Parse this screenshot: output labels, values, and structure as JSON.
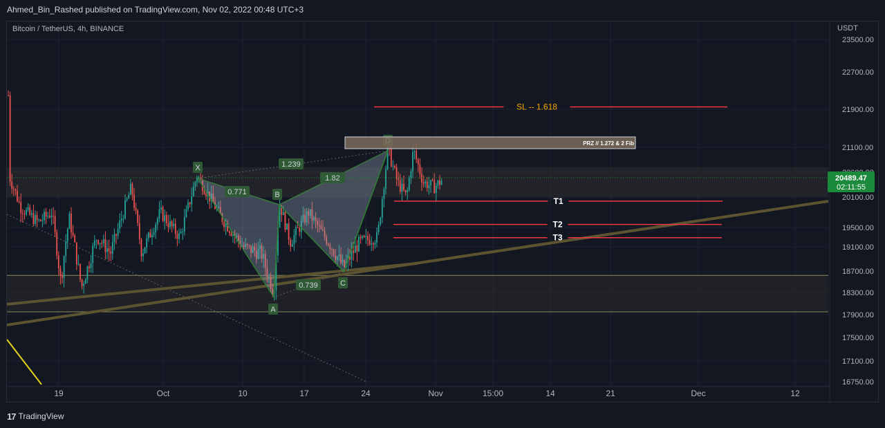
{
  "header": {
    "publish_line": "Ahmed_Bin_Rashed published on TradingView.com, Nov 02, 2022 00:48 UTC+3"
  },
  "symbol": {
    "title": "Bitcoin / TetherUS, 4h, BINANCE"
  },
  "footer": {
    "logo_icon": "tv-logo-icon",
    "brand": "TradingView"
  },
  "colors": {
    "background": "#131722",
    "up_candle": "#26a69a",
    "down_candle": "#ef5350",
    "level_line": "#f23645",
    "sl_text": "#f7a600",
    "pattern_fill": "#8fa3b8",
    "pattern_edge": "#2e7d32",
    "trendline": "#5c5430",
    "price_tag": "#1b8a3a"
  },
  "chart_data": {
    "type": "candlestick",
    "currency_label": "USDT",
    "y_ticks": [
      23500,
      22700,
      21900,
      21100,
      20600,
      20100,
      19500,
      19100,
      18700,
      18300,
      17900,
      17500,
      17100,
      16750
    ],
    "y_tick_labels": [
      "23500.00",
      "22700.00",
      "21900.00",
      "21100.00",
      "20600.00",
      "20100.00",
      "19500.00",
      "19100.00",
      "18700.00",
      "18300.00",
      "17900.00",
      "17500.00",
      "17100.00",
      "16750.00"
    ],
    "x_ticks": [
      "19",
      "Oct",
      "10",
      "17",
      "24",
      "Nov",
      "15:00",
      "14",
      "21",
      "Dec",
      "12"
    ],
    "last_price": "20489.47",
    "countdown": "02:11:55",
    "harmonic_points": [
      {
        "label": "X",
        "price": 20540
      },
      {
        "label": "A",
        "price": 18250
      },
      {
        "label": "B",
        "price": 20050
      },
      {
        "label": "C",
        "price": 18700
      },
      {
        "label": "D",
        "price": 21050
      }
    ],
    "ratios": [
      "0.771",
      "0.739",
      "1.239",
      "1.82"
    ],
    "prz_label": "PRZ  //  1.272 & 2 Fib",
    "levels": [
      {
        "name": "SL",
        "label": "SL  -- 1.618",
        "price": 21950
      },
      {
        "name": "T1",
        "label": "T1",
        "price": 20020
      },
      {
        "name": "T2",
        "label": "T2",
        "price": 19560
      },
      {
        "name": "T3",
        "label": "T3",
        "price": 19290
      }
    ]
  }
}
